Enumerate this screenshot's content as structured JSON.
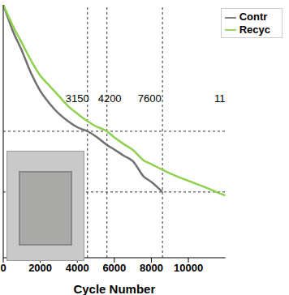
{
  "chart_data": {
    "type": "line",
    "x_label": "Cycle Number",
    "xlim": [
      0,
      12000
    ],
    "xticks": [
      0,
      2000,
      4000,
      6000,
      8000,
      10000
    ],
    "ylim": [
      50,
      100
    ],
    "yticks": [
      50,
      60,
      70,
      80,
      90,
      100
    ],
    "tick_labels": "x",
    "grid": false,
    "legend": "upper right",
    "series": [
      {
        "name": "Contr",
        "color": "#707070",
        "x": [
          0,
          250,
          500,
          1000,
          1500,
          2000,
          2500,
          3000,
          3500,
          4000,
          4550,
          5000,
          5600,
          6000,
          6500,
          7000,
          7600,
          8000,
          8600
        ],
        "values": [
          100,
          97.5,
          95,
          91,
          86.5,
          83,
          80.5,
          78.5,
          77,
          75.8,
          75,
          74,
          72.3,
          71.4,
          70.2,
          69.1,
          66,
          65,
          63
        ]
      },
      {
        "name": "Recyc",
        "color": "#8fd14f",
        "x": [
          0,
          250,
          500,
          1000,
          1500,
          2000,
          2500,
          3000,
          3500,
          4000,
          4550,
          5000,
          5600,
          6000,
          6500,
          7000,
          7600,
          8000,
          8600,
          9000,
          10000,
          11000,
          11500,
          12000
        ],
        "values": [
          100,
          98,
          96,
          92.5,
          89,
          86,
          84,
          82,
          80,
          78.5,
          77,
          76,
          75,
          73.8,
          72.5,
          71.3,
          69.2,
          68.5,
          67.4,
          66.7,
          65.2,
          63.8,
          63,
          62.3
        ]
      }
    ],
    "reference_lines": {
      "x": [
        4550,
        5600,
        8600
      ],
      "y": [
        75,
        63
      ]
    },
    "annotations": [
      {
        "text": "3150",
        "x": 4000,
        "y": 81.5
      },
      {
        "text": "4200",
        "x": 5750,
        "y": 81.5
      },
      {
        "text": "7600",
        "x": 7900,
        "y": 81.5
      },
      {
        "text": "11",
        "x": 11700,
        "y": 81.5
      }
    ]
  }
}
